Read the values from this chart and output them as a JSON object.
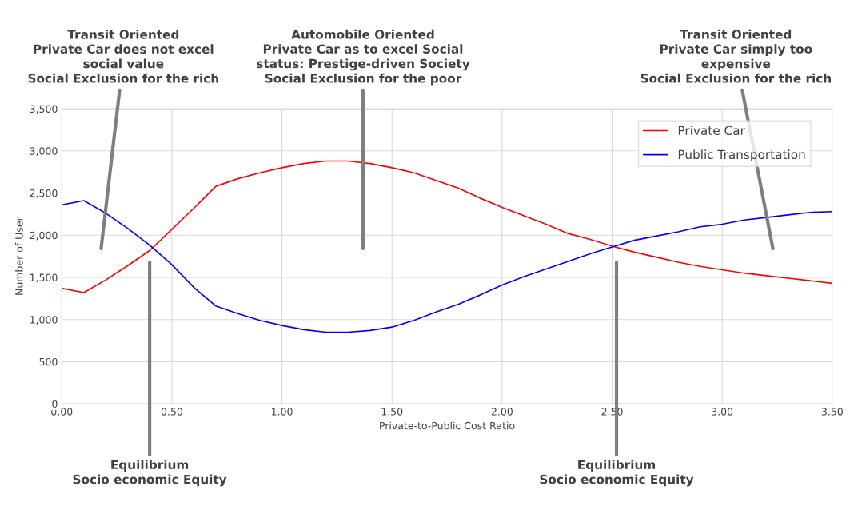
{
  "chart_data": {
    "type": "line",
    "xlabel": "Private-to-Public Cost Ratio",
    "ylabel": "Number of User",
    "x": [
      0,
      0.1,
      0.2,
      0.3,
      0.4,
      0.5,
      0.6,
      0.7,
      0.8,
      0.9,
      1.0,
      1.1,
      1.2,
      1.3,
      1.4,
      1.5,
      1.6,
      1.7,
      1.8,
      1.9,
      2.0,
      2.1,
      2.2,
      2.3,
      2.4,
      2.5,
      2.6,
      2.7,
      2.8,
      2.9,
      3.0,
      3.1,
      3.2,
      3.3,
      3.4,
      3.5
    ],
    "series": [
      {
        "name": "Private Car",
        "color": "#ff0000",
        "values": [
          1370,
          1320,
          1470,
          1640,
          1820,
          2070,
          2320,
          2580,
          2670,
          2740,
          2800,
          2850,
          2880,
          2880,
          2850,
          2800,
          2740,
          2650,
          2560,
          2440,
          2330,
          2230,
          2130,
          2020,
          1950,
          1870,
          1800,
          1740,
          1680,
          1630,
          1590,
          1550,
          1520,
          1490,
          1460,
          1430
        ]
      },
      {
        "name": "Public Transportation",
        "color": "#0000ff",
        "values": [
          2360,
          2410,
          2260,
          2080,
          1880,
          1650,
          1380,
          1160,
          1070,
          990,
          930,
          880,
          850,
          850,
          870,
          910,
          990,
          1090,
          1180,
          1290,
          1410,
          1510,
          1600,
          1690,
          1780,
          1860,
          1940,
          1990,
          2040,
          2100,
          2130,
          2180,
          2210,
          2240,
          2270,
          2280
        ]
      }
    ],
    "xlim": [
      0,
      3.5
    ],
    "xticks": [
      {
        "value": 0,
        "label": "0.00"
      },
      {
        "value": 0.5,
        "label": "0.50"
      },
      {
        "value": 1,
        "label": "1.00"
      },
      {
        "value": 1.5,
        "label": "1.50"
      },
      {
        "value": 2,
        "label": "2.00"
      },
      {
        "value": 2.5,
        "label": "2.50"
      },
      {
        "value": 3,
        "label": "3.00"
      },
      {
        "value": 3.5,
        "label": "3.50"
      }
    ],
    "ylim": [
      0,
      3500
    ],
    "yticks": [
      0,
      500,
      {
        "value": 1000,
        "label": "1,000"
      },
      {
        "value": 1500,
        "label": "1,500"
      },
      {
        "value": 2000,
        "label": "2,000"
      },
      {
        "value": 2500,
        "label": "2,500"
      },
      {
        "value": 3000,
        "label": "3,000"
      },
      {
        "value": 3500,
        "label": "3,500"
      }
    ],
    "grid": true,
    "legend": "top right",
    "line_style": "solid",
    "marker": "none",
    "annotations": [
      "Transit Oriented\nPrivate Car does not excel\nsocial value\nSocial Exclusion for the rich",
      "Automobile Oriented\nPrivate Car as to excel Social\nstatus: Prestige-driven Society\nSocial Exclusion for the poor",
      "Transit Oriented\nPrivate Car simply too\nexpensive\nSocial Exclusion for the rich",
      "Equilibrium\nSocio economic Equity",
      "Equilibrium\nSocio economic Equity"
    ]
  }
}
